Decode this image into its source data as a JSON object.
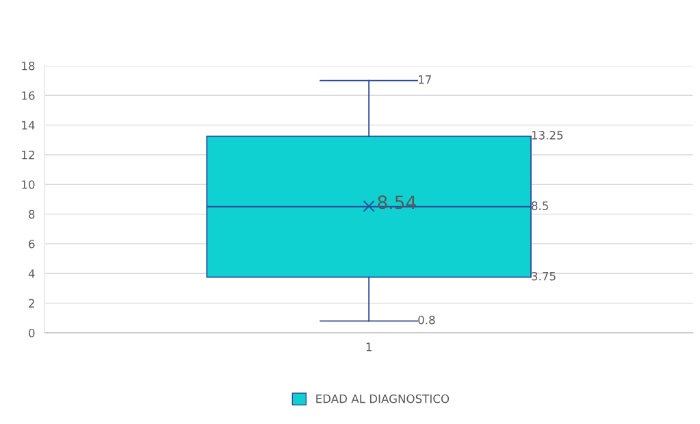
{
  "chart_data": {
    "type": "box",
    "categories": [
      "1"
    ],
    "series": [
      {
        "name": "EDAD AL DIAGNOSTICO",
        "color": "#0fd1d1",
        "boxes": [
          {
            "low": 0.8,
            "q1": 3.75,
            "median": 8.5,
            "q3": 13.25,
            "high": 17,
            "mean": 8.54
          }
        ]
      }
    ],
    "ylim": [
      0,
      18
    ],
    "yticks": [
      0,
      2,
      4,
      6,
      8,
      10,
      12,
      14,
      16,
      18
    ],
    "grid": "y",
    "legend": "bottom",
    "data_labels": true,
    "annotations": [
      "17",
      "13.25",
      "8.54",
      "8.5",
      "3.75",
      "0.8"
    ]
  }
}
